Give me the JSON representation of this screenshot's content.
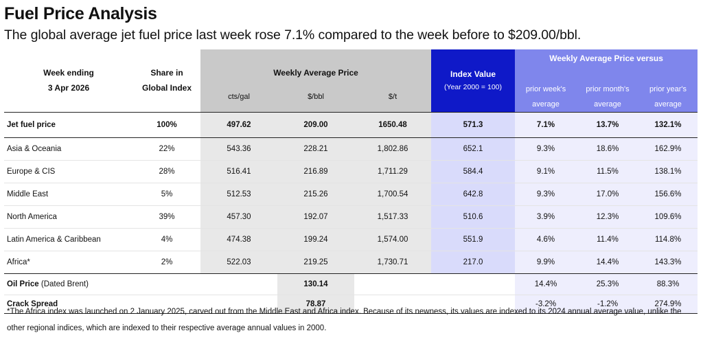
{
  "title": "Fuel Price Analysis",
  "subtitle": "The global average jet fuel price last week rose 7.1% compared to the week before to $209.00/bbl.",
  "header": {
    "week_ending_label": "Week ending",
    "week_ending_date": "3 Apr 2026",
    "share_label_line1": "Share in",
    "share_label_line2": "Global Index",
    "weekly_avg_label": "Weekly Average Price",
    "unit_cts_gal": "cts/gal",
    "unit_bbl": "$/bbl",
    "unit_t": "$/t",
    "index_label": "Index Value",
    "index_sub": "(Year 2000 = 100)",
    "versus_label": "Weekly Average Price versus",
    "prior_week_1": "prior week's",
    "prior_week_2": "average",
    "prior_month_1": "prior month's",
    "prior_month_2": "average",
    "prior_year_1": "prior year's",
    "prior_year_2": "average"
  },
  "jet": {
    "label": "Jet fuel price",
    "share": "100%",
    "cts": "497.62",
    "bbl": "209.00",
    "t": "1650.48",
    "index": "571.3",
    "wk": "7.1%",
    "mo": "13.7%",
    "yr": "132.1%"
  },
  "regions": [
    {
      "label": "Asia & Oceania",
      "share": "22%",
      "cts": "543.36",
      "bbl": "228.21",
      "t": "1,802.86",
      "index": "652.1",
      "wk": "9.3%",
      "mo": "18.6%",
      "yr": "162.9%"
    },
    {
      "label": "Europe & CIS",
      "share": "28%",
      "cts": "516.41",
      "bbl": "216.89",
      "t": "1,711.29",
      "index": "584.4",
      "wk": "9.1%",
      "mo": "11.5%",
      "yr": "138.1%"
    },
    {
      "label": "Middle East",
      "share": "5%",
      "cts": "512.53",
      "bbl": "215.26",
      "t": "1,700.54",
      "index": "642.8",
      "wk": "9.3%",
      "mo": "17.0%",
      "yr": "156.6%"
    },
    {
      "label": "North America",
      "share": "39%",
      "cts": "457.30",
      "bbl": "192.07",
      "t": "1,517.33",
      "index": "510.6",
      "wk": "3.9%",
      "mo": "12.3%",
      "yr": "109.6%"
    },
    {
      "label": "Latin America & Caribbean",
      "share": "4%",
      "cts": "474.38",
      "bbl": "199.24",
      "t": "1,574.00",
      "index": "551.9",
      "wk": "4.6%",
      "mo": "11.4%",
      "yr": "114.8%"
    },
    {
      "label": "Africa*",
      "share": "2%",
      "cts": "522.03",
      "bbl": "219.25",
      "t": "1,730.71",
      "index": "217.0",
      "wk": "9.9%",
      "mo": "14.4%",
      "yr": "143.3%"
    }
  ],
  "oil": {
    "label_bold": "Oil Price",
    "label_rest": " (Dated Brent)",
    "bbl": "130.14",
    "wk": "14.4%",
    "mo": "25.3%",
    "yr": "88.3%"
  },
  "crack": {
    "label": "Crack Spread",
    "bbl": "78.87",
    "wk": "-3.2%",
    "mo": "-1.2%",
    "yr": "274.9%"
  },
  "footnote": "*The Africa index was launched on 2 January 2025, carved out from the Middle East and Africa index. Because of its newness, its values are indexed  to its 2024 annual average value, unlike the other regional indices, which are indexed to their respective average annual values in 2000.",
  "colors": {
    "index_header": "#0f19c8",
    "versus_header": "#7f86ec",
    "price_header": "#c9c9c9"
  }
}
